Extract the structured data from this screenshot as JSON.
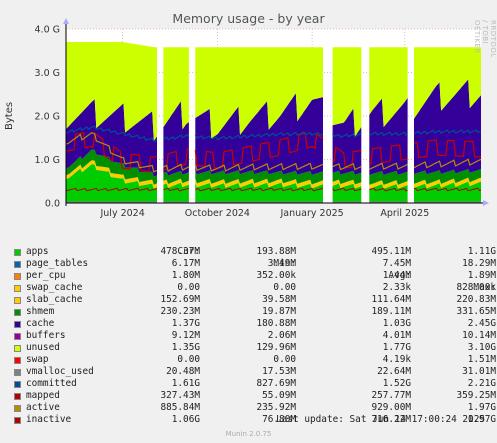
{
  "chart_data": {
    "type": "area",
    "title": "Memory usage - by year",
    "ylabel": "Bytes",
    "ylim": [
      0,
      4000000000
    ],
    "yticks": [
      {
        "label": "0.0",
        "value": 0
      },
      {
        "label": "1.0 G",
        "value": 1000000000
      },
      {
        "label": "2.0 G",
        "value": 2000000000
      },
      {
        "label": "3.0 G",
        "value": 3000000000
      },
      {
        "label": "4.0 G",
        "value": 4000000000
      }
    ],
    "x_start": "2024-05-07",
    "x_end": "2025-06-14",
    "xticks": [
      {
        "label": "July 2024",
        "date": "2024-07-01"
      },
      {
        "label": "October 2024",
        "date": "2024-10-01"
      },
      {
        "label": "January 2025",
        "date": "2025-01-01"
      },
      {
        "label": "April 2025",
        "date": "2025-04-01"
      }
    ],
    "gaps": [
      {
        "from": "2024-08-04",
        "to": "2024-08-09"
      },
      {
        "from": "2024-09-04",
        "to": "2024-09-09"
      },
      {
        "from": "2025-01-13",
        "to": "2025-01-20"
      },
      {
        "from": "2025-02-19",
        "to": "2025-02-25"
      },
      {
        "from": "2025-04-04",
        "to": "2025-04-09"
      }
    ],
    "grid": true,
    "legend_position": "bottom",
    "approx_stack_bytes": {
      "x": [
        "2024-05-10",
        "2024-06-01",
        "2024-07-01",
        "2024-08-01",
        "2024-09-01",
        "2024-10-01",
        "2024-11-01",
        "2024-12-01",
        "2025-01-01",
        "2025-02-01",
        "2025-03-01",
        "2025-04-01",
        "2025-05-01",
        "2025-06-12"
      ],
      "apps_top": [
        550000000,
        800000000,
        450000000,
        320000000,
        360000000,
        340000000,
        350000000,
        360000000,
        330000000,
        340000000,
        320000000,
        330000000,
        340000000,
        400000000
      ],
      "shmem_top": [
        800000000,
        1150000000,
        820000000,
        600000000,
        650000000,
        650000000,
        660000000,
        650000000,
        640000000,
        650000000,
        640000000,
        650000000,
        660000000,
        700000000
      ],
      "cache_top": [
        1700000000,
        1700000000,
        1600000000,
        1400000000,
        1700000000,
        1400000000,
        1600000000,
        1700000000,
        2000000000,
        1400000000,
        1700000000,
        1800000000,
        2100000000,
        2200000000
      ],
      "unused_top": [
        3700000000,
        3700000000,
        3700000000,
        3580000000,
        3580000000,
        3580000000,
        3580000000,
        3580000000,
        3580000000,
        3580000000,
        3580000000,
        3580000000,
        3580000000,
        3580000000
      ],
      "committed": [
        1600000000,
        1700000000,
        1550000000,
        1400000000,
        1500000000,
        1450000000,
        1500000000,
        1550000000,
        1550000000,
        1500000000,
        1550000000,
        1550000000,
        1600000000,
        1610000000
      ],
      "active": [
        1350000000,
        1500000000,
        900000000,
        700000000,
        750000000,
        720000000,
        750000000,
        760000000,
        770000000,
        760000000,
        770000000,
        780000000,
        820000000,
        885000000
      ],
      "inactive": [
        1200000000,
        1300000000,
        800000000,
        700000000,
        900000000,
        800000000,
        950000000,
        1100000000,
        1300000000,
        800000000,
        900000000,
        1000000000,
        1100000000,
        1060000000
      ]
    },
    "columns": {
      "cur": "Cur:",
      "min": "Min:",
      "avg": "Avg:",
      "max": "Max:"
    },
    "series": [
      {
        "name": "apps",
        "color": "#00cc00",
        "cur": "478.37M",
        "min": "193.88M",
        "avg": "495.11M",
        "max": "1.11G"
      },
      {
        "name": "page_tables",
        "color": "#0066b3",
        "cur": "6.17M",
        "min": "3.49M",
        "avg": "7.45M",
        "max": "18.29M"
      },
      {
        "name": "per_cpu",
        "color": "#ff8000",
        "cur": "1.80M",
        "min": "352.00k",
        "avg": "1.44M",
        "max": "1.89M"
      },
      {
        "name": "swap_cache",
        "color": "#ffcc00",
        "cur": "0.00",
        "min": "0.00",
        "avg": "2.33k",
        "max": "828.00k"
      },
      {
        "name": "slab_cache",
        "color": "#ffcc00",
        "cur": "152.69M",
        "min": "39.58M",
        "avg": "111.64M",
        "max": "220.83M"
      },
      {
        "name": "shmem",
        "color": "#008f00",
        "cur": "230.23M",
        "min": "19.87M",
        "avg": "189.11M",
        "max": "331.65M"
      },
      {
        "name": "cache",
        "color": "#330099",
        "cur": "1.37G",
        "min": "180.88M",
        "avg": "1.03G",
        "max": "2.45G"
      },
      {
        "name": "buffers",
        "color": "#990099",
        "cur": "9.12M",
        "min": "2.06M",
        "avg": "4.01M",
        "max": "10.14M"
      },
      {
        "name": "unused",
        "color": "#ccff00",
        "cur": "1.35G",
        "min": "129.96M",
        "avg": "1.77G",
        "max": "3.10G"
      },
      {
        "name": "swap",
        "color": "#ff0000",
        "cur": "0.00",
        "min": "0.00",
        "avg": "4.19k",
        "max": "1.51M"
      },
      {
        "name": "vmalloc_used",
        "color": "#808080",
        "cur": "20.48M",
        "min": "17.53M",
        "avg": "22.64M",
        "max": "31.01M"
      },
      {
        "name": "committed",
        "color": "#004d99",
        "cur": "1.61G",
        "min": "827.69M",
        "avg": "1.52G",
        "max": "2.21G"
      },
      {
        "name": "mapped",
        "color": "#b30000",
        "cur": "327.43M",
        "min": "55.09M",
        "avg": "257.77M",
        "max": "359.25M"
      },
      {
        "name": "active",
        "color": "#b38f00",
        "cur": "885.84M",
        "min": "235.92M",
        "avg": "929.00M",
        "max": "1.97G"
      },
      {
        "name": "inactive",
        "color": "#b30000",
        "cur": "1.06G",
        "min": "76.80M",
        "avg": "716.22M",
        "max": "1.97G"
      }
    ]
  },
  "footer": {
    "last_update": "Last update: Sat Jun 14 17:00:24 2025",
    "munin": "Munin 2.0.75"
  },
  "side_label": "RRDTOOL / TOBI OETIKER"
}
